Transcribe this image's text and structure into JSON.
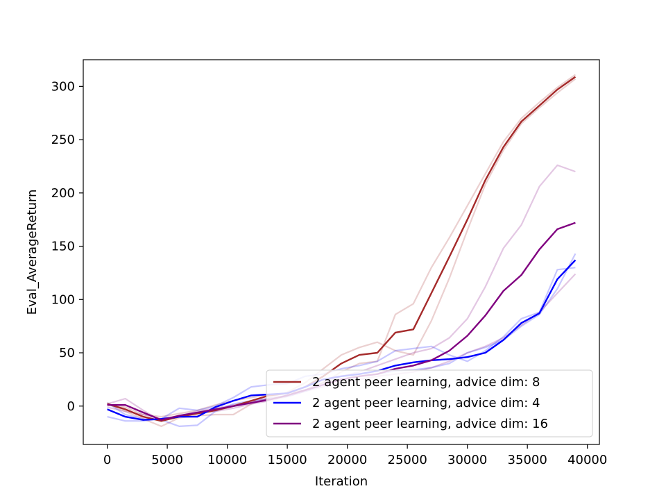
{
  "chart_data": {
    "type": "line",
    "title": "",
    "xlabel": "Iteration",
    "ylabel": "Eval_AverageReturn",
    "xlim": [
      -2000,
      41000
    ],
    "ylim": [
      -36,
      325
    ],
    "xticks": [
      0,
      5000,
      10000,
      15000,
      20000,
      25000,
      30000,
      35000,
      40000
    ],
    "yticks": [
      0,
      50,
      100,
      150,
      200,
      250,
      300
    ],
    "xtick_labels": [
      "0",
      "5000",
      "10000",
      "15000",
      "20000",
      "25000",
      "30000",
      "35000",
      "40000"
    ],
    "ytick_labels": [
      "0",
      "50",
      "100",
      "150",
      "200",
      "250",
      "300"
    ],
    "grid": false,
    "legend_position": "lower-right",
    "x": [
      0,
      1500,
      3000,
      4500,
      6000,
      7500,
      9000,
      10500,
      12000,
      13500,
      15000,
      16500,
      18000,
      19500,
      21000,
      22500,
      24000,
      25500,
      27000,
      28500,
      30000,
      31500,
      33000,
      34500,
      36000,
      37500,
      39000
    ],
    "series": [
      {
        "name": "2 agent peer learning, advice dim: 8",
        "color": "#a52a2a",
        "values": [
          2,
          -3,
          -10,
          -14,
          -10,
          -7,
          -4,
          0,
          5,
          10,
          12,
          18,
          28,
          40,
          48,
          50,
          69,
          72,
          106,
          140,
          175,
          212,
          243,
          267,
          282,
          297,
          309
        ],
        "runs": [
          [
            3,
            -5,
            -12,
            -19,
            -11,
            -9,
            -8,
            -8,
            2,
            8,
            13,
            22,
            35,
            48,
            55,
            60,
            52,
            48,
            80,
            120,
            165,
            208,
            240,
            265,
            280,
            294,
            307
          ],
          [
            1,
            -1,
            -8,
            -10,
            -7,
            -4,
            1,
            5,
            8,
            11,
            12,
            15,
            22,
            32,
            40,
            42,
            86,
            96,
            130,
            158,
            188,
            218,
            248,
            270,
            285,
            299,
            311
          ]
        ]
      },
      {
        "name": "2 agent peer learning, advice dim: 4",
        "color": "#0000ff",
        "values": [
          -3,
          -10,
          -13,
          -12,
          -10,
          -10,
          -1,
          5,
          10,
          11,
          12,
          18,
          25,
          28,
          30,
          33,
          38,
          41,
          43,
          44,
          46,
          50,
          62,
          78,
          87,
          119,
          137
        ],
        "runs": [
          [
            -10,
            -14,
            -14,
            -12,
            -2,
            -4,
            0,
            8,
            18,
            20,
            21,
            28,
            30,
            35,
            38,
            42,
            52,
            54,
            56,
            48,
            42,
            52,
            65,
            82,
            88,
            128,
            130
          ],
          [
            3,
            -8,
            -12,
            -13,
            -19,
            -18,
            -5,
            2,
            5,
            7,
            9,
            14,
            20,
            25,
            28,
            30,
            33,
            34,
            36,
            40,
            50,
            55,
            62,
            75,
            86,
            110,
            143
          ]
        ]
      },
      {
        "name": "2 agent peer learning, advice dim: 16",
        "color": "#800080",
        "values": [
          1,
          1,
          -6,
          -13,
          -9,
          -6,
          -3,
          0,
          3,
          6,
          10,
          15,
          20,
          25,
          28,
          30,
          35,
          38,
          43,
          52,
          66,
          85,
          108,
          123,
          147,
          166,
          172
        ],
        "runs": [
          [
            2,
            7,
            -4,
            -14,
            -9,
            -5,
            -2,
            1,
            4,
            7,
            10,
            15,
            22,
            28,
            32,
            38,
            44,
            50,
            54,
            64,
            82,
            112,
            148,
            170,
            206,
            226,
            220
          ],
          [
            -1,
            -5,
            -8,
            -12,
            -9,
            -7,
            -5,
            -2,
            2,
            5,
            9,
            14,
            18,
            22,
            25,
            28,
            30,
            32,
            36,
            42,
            50,
            56,
            64,
            76,
            88,
            106,
            124
          ]
        ]
      }
    ]
  }
}
